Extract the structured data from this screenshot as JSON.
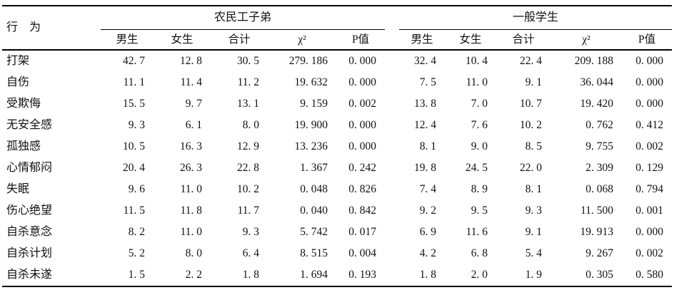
{
  "table": {
    "row_header": "行　为",
    "groups": [
      {
        "label": "农民工子弟",
        "columns": [
          "男生",
          "女生",
          "合计",
          "χ²",
          "P值"
        ]
      },
      {
        "label": "一般学生",
        "columns": [
          "男生",
          "女生",
          "合计",
          "χ²",
          "P值"
        ]
      }
    ],
    "rows": [
      {
        "label": "打架",
        "g1": [
          "42. 7",
          "12. 8",
          "30. 5",
          "279. 186",
          "0. 000"
        ],
        "g2": [
          "32. 4",
          "10. 4",
          "22. 4",
          "209. 188",
          "0. 000"
        ]
      },
      {
        "label": "自伤",
        "g1": [
          "11. 1",
          "11. 4",
          "11. 2",
          "19. 632",
          "0. 000"
        ],
        "g2": [
          "7. 5",
          "11. 0",
          "9. 1",
          "36. 044",
          "0. 000"
        ]
      },
      {
        "label": "受欺侮",
        "g1": [
          "15. 5",
          "9. 7",
          "13. 1",
          "9. 159",
          "0. 002"
        ],
        "g2": [
          "13. 8",
          "7. 0",
          "10. 7",
          "19. 420",
          "0. 000"
        ]
      },
      {
        "label": "无安全感",
        "g1": [
          "9. 3",
          "6. 1",
          "8. 0",
          "19. 900",
          "0. 000"
        ],
        "g2": [
          "12. 4",
          "7. 6",
          "10. 2",
          "0. 762",
          "0. 412"
        ]
      },
      {
        "label": "孤独感",
        "g1": [
          "10. 5",
          "16. 3",
          "12. 9",
          "13. 236",
          "0. 000"
        ],
        "g2": [
          "8. 1",
          "9. 0",
          "8. 5",
          "9. 755",
          "0. 002"
        ]
      },
      {
        "label": "心情郁闷",
        "g1": [
          "20. 4",
          "26. 3",
          "22. 8",
          "1. 367",
          "0. 242"
        ],
        "g2": [
          "19. 8",
          "24. 5",
          "22. 0",
          "2. 309",
          "0. 129"
        ]
      },
      {
        "label": "失眠",
        "g1": [
          "9. 6",
          "11. 0",
          "10. 2",
          "0. 048",
          "0. 826"
        ],
        "g2": [
          "7. 4",
          "8. 9",
          "8. 1",
          "0. 068",
          "0. 794"
        ]
      },
      {
        "label": "伤心绝望",
        "g1": [
          "11. 5",
          "11. 8",
          "11. 7",
          "0. 040",
          "0. 842"
        ],
        "g2": [
          "9. 2",
          "9. 5",
          "9. 3",
          "11. 500",
          "0. 001"
        ]
      },
      {
        "label": "自杀意念",
        "g1": [
          "8. 2",
          "11. 0",
          "9. 3",
          "5. 742",
          "0. 017"
        ],
        "g2": [
          "6. 9",
          "11. 6",
          "9. 1",
          "19. 913",
          "0. 000"
        ]
      },
      {
        "label": "自杀计划",
        "g1": [
          "5. 2",
          "8. 0",
          "6. 4",
          "8. 515",
          "0. 004"
        ],
        "g2": [
          "4. 2",
          "6. 8",
          "5. 4",
          "9. 267",
          "0. 002"
        ]
      },
      {
        "label": "自杀未遂",
        "g1": [
          "1. 5",
          "2. 2",
          "1. 8",
          "1. 694",
          "0. 193"
        ],
        "g2": [
          "1. 8",
          "2. 0",
          "1. 9",
          "0. 305",
          "0. 580"
        ]
      }
    ]
  }
}
